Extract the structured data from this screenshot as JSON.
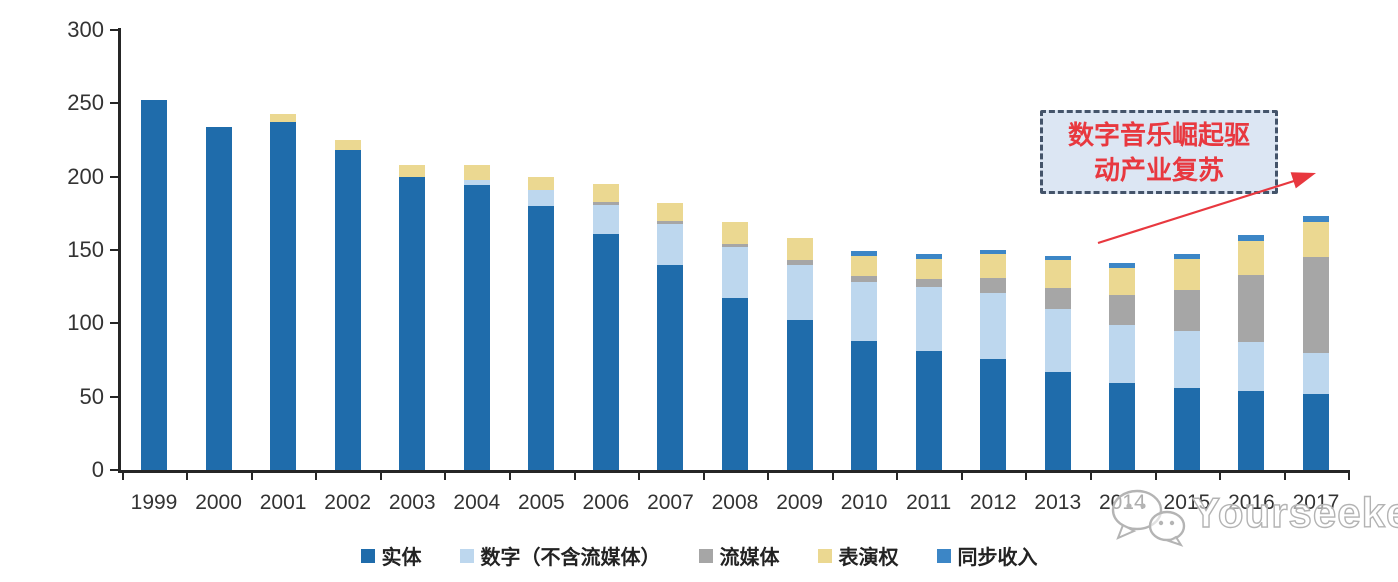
{
  "chart_data": {
    "type": "bar",
    "stacked": true,
    "title": "",
    "xlabel": "",
    "ylabel": "",
    "categories": [
      "1999",
      "2000",
      "2001",
      "2002",
      "2003",
      "2004",
      "2005",
      "2006",
      "2007",
      "2008",
      "2009",
      "2010",
      "2011",
      "2012",
      "2013",
      "2014",
      "2015",
      "2016",
      "2017"
    ],
    "series": [
      {
        "key": "physical",
        "name": "实体",
        "color": "#1F6CAB",
        "values": [
          252,
          234,
          237,
          218,
          200,
          194,
          180,
          161,
          140,
          117,
          102,
          88,
          81,
          76,
          67,
          59,
          56,
          54,
          52
        ]
      },
      {
        "key": "digital",
        "name": "数字（不含流媒体）",
        "color": "#BDD7EE",
        "values": [
          0,
          0,
          0,
          0,
          0,
          4,
          11,
          20,
          28,
          35,
          38,
          40,
          44,
          45,
          43,
          40,
          39,
          33,
          28
        ]
      },
      {
        "key": "streaming",
        "name": "流媒体",
        "color": "#A6A6A6",
        "values": [
          0,
          0,
          0,
          0,
          0,
          0,
          0,
          2,
          2,
          2,
          3,
          4,
          5,
          10,
          14,
          20,
          28,
          46,
          65
        ]
      },
      {
        "key": "performance",
        "name": "表演权",
        "color": "#EBD891",
        "values": [
          0,
          0,
          6,
          7,
          8,
          10,
          9,
          12,
          12,
          15,
          15,
          14,
          14,
          16,
          19,
          19,
          21,
          23,
          24
        ]
      },
      {
        "key": "sync",
        "name": "同步收入",
        "color": "#3C86C6",
        "values": [
          0,
          0,
          0,
          0,
          0,
          0,
          0,
          0,
          0,
          0,
          0,
          3,
          3,
          3,
          3,
          3,
          3,
          4,
          4
        ]
      }
    ],
    "ylim": [
      0,
      300
    ],
    "yticks": [
      0,
      50,
      100,
      150,
      200,
      250,
      300
    ],
    "grid": false,
    "legend_position": "bottom",
    "axis_color": "#262626"
  },
  "annotation": {
    "line1": "数字音乐崛起驱",
    "line2": "动产业复苏",
    "text_color": "#e8383f",
    "box_fill": "#dce6f3",
    "box_border_color": "#44546a",
    "arrow_color": "#e8383f"
  },
  "watermark": {
    "text": "Yourseeker",
    "icon": "wechat-icon",
    "color": "#b3b3b3"
  }
}
